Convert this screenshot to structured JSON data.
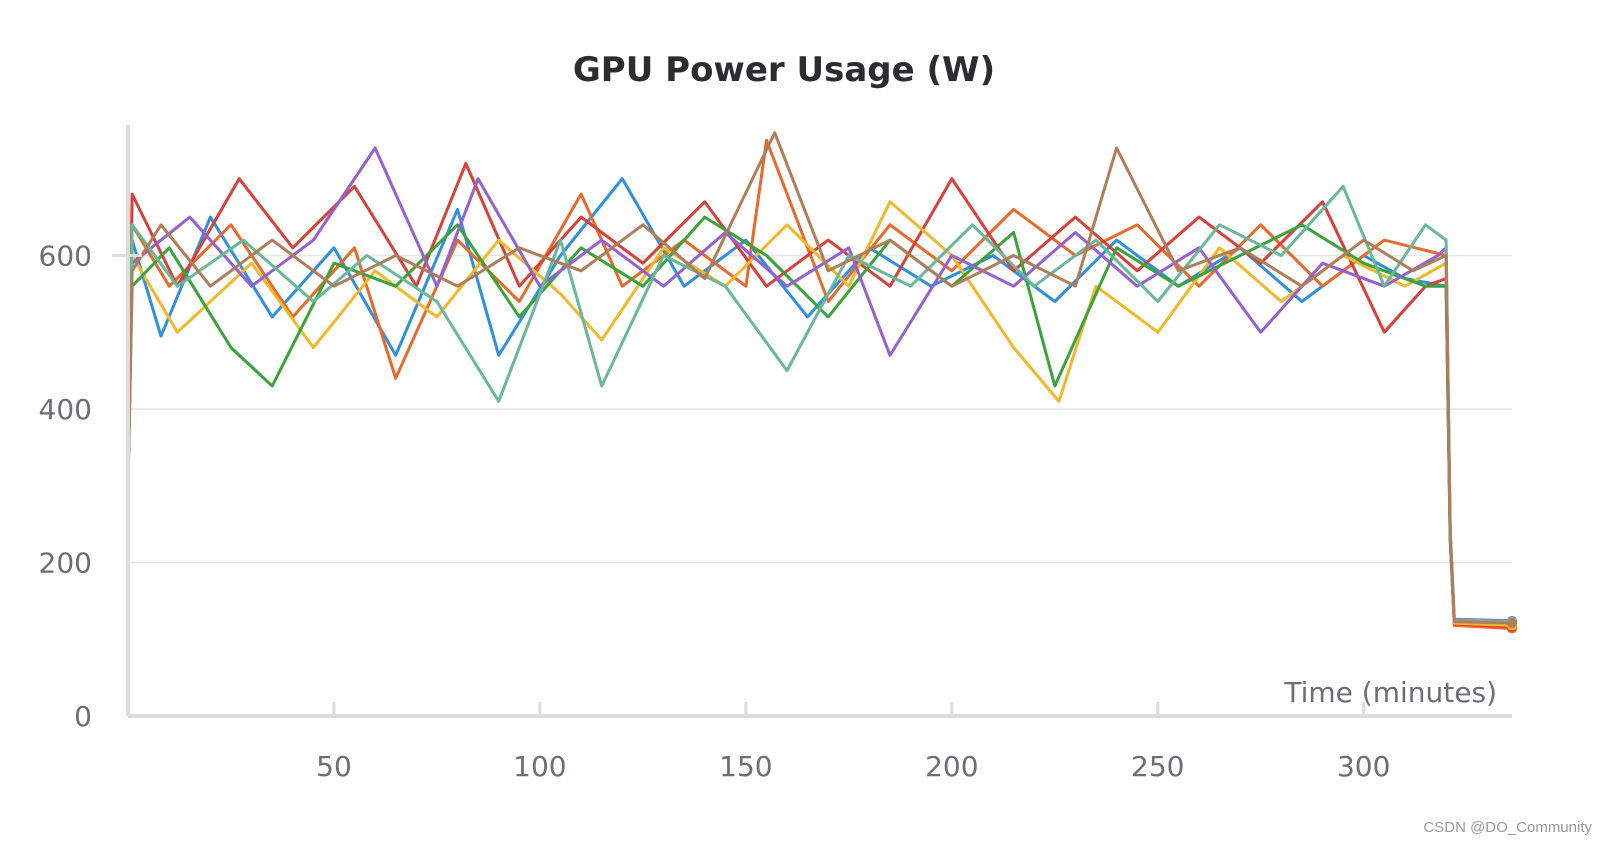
{
  "chart_data": {
    "type": "line",
    "title": "GPU Power Usage (W)",
    "xlabel": "Time (minutes)",
    "ylabel": "",
    "xlim": [
      0,
      336
    ],
    "ylim": [
      0,
      770
    ],
    "x_ticks": [
      50,
      100,
      150,
      200,
      250,
      300
    ],
    "y_ticks": [
      0,
      200,
      400,
      600
    ],
    "grid": true,
    "legend": "none",
    "series": [
      {
        "color": "#2f8fe0",
        "values": [
          [
            0,
            300
          ],
          [
            1,
            620
          ],
          [
            8,
            495
          ],
          [
            20,
            650
          ],
          [
            35,
            520
          ],
          [
            50,
            610
          ],
          [
            65,
            470
          ],
          [
            80,
            660
          ],
          [
            90,
            470
          ],
          [
            105,
            600
          ],
          [
            120,
            700
          ],
          [
            135,
            560
          ],
          [
            150,
            620
          ],
          [
            165,
            520
          ],
          [
            180,
            610
          ],
          [
            195,
            560
          ],
          [
            210,
            600
          ],
          [
            225,
            540
          ],
          [
            240,
            620
          ],
          [
            255,
            560
          ],
          [
            270,
            610
          ],
          [
            285,
            540
          ],
          [
            300,
            600
          ],
          [
            310,
            570
          ],
          [
            320,
            560
          ],
          [
            321,
            230
          ],
          [
            322,
            122
          ],
          [
            336,
            120
          ]
        ]
      },
      {
        "color": "#e8692a",
        "values": [
          [
            0,
            300
          ],
          [
            1,
            640
          ],
          [
            10,
            560
          ],
          [
            25,
            640
          ],
          [
            40,
            520
          ],
          [
            55,
            610
          ],
          [
            65,
            440
          ],
          [
            80,
            620
          ],
          [
            95,
            540
          ],
          [
            110,
            680
          ],
          [
            120,
            560
          ],
          [
            135,
            620
          ],
          [
            150,
            560
          ],
          [
            155,
            750
          ],
          [
            170,
            540
          ],
          [
            185,
            640
          ],
          [
            200,
            580
          ],
          [
            215,
            660
          ],
          [
            230,
            600
          ],
          [
            245,
            640
          ],
          [
            260,
            560
          ],
          [
            275,
            640
          ],
          [
            290,
            560
          ],
          [
            305,
            620
          ],
          [
            320,
            600
          ],
          [
            321,
            230
          ],
          [
            322,
            118
          ],
          [
            336,
            114
          ]
        ]
      },
      {
        "color": "#d8403a",
        "values": [
          [
            0,
            300
          ],
          [
            1,
            680
          ],
          [
            12,
            560
          ],
          [
            27,
            700
          ],
          [
            40,
            610
          ],
          [
            55,
            690
          ],
          [
            70,
            560
          ],
          [
            82,
            720
          ],
          [
            95,
            560
          ],
          [
            110,
            650
          ],
          [
            125,
            590
          ],
          [
            140,
            670
          ],
          [
            155,
            560
          ],
          [
            170,
            620
          ],
          [
            185,
            560
          ],
          [
            200,
            700
          ],
          [
            215,
            580
          ],
          [
            230,
            650
          ],
          [
            245,
            580
          ],
          [
            260,
            650
          ],
          [
            275,
            590
          ],
          [
            290,
            670
          ],
          [
            305,
            500
          ],
          [
            315,
            560
          ],
          [
            320,
            570
          ],
          [
            321,
            240
          ],
          [
            322,
            120
          ],
          [
            336,
            116
          ]
        ]
      },
      {
        "color": "#f2b82a",
        "values": [
          [
            0,
            300
          ],
          [
            1,
            600
          ],
          [
            12,
            500
          ],
          [
            30,
            590
          ],
          [
            45,
            480
          ],
          [
            60,
            580
          ],
          [
            75,
            520
          ],
          [
            90,
            620
          ],
          [
            105,
            550
          ],
          [
            115,
            490
          ],
          [
            130,
            610
          ],
          [
            145,
            560
          ],
          [
            160,
            640
          ],
          [
            175,
            560
          ],
          [
            185,
            670
          ],
          [
            200,
            600
          ],
          [
            215,
            480
          ],
          [
            226,
            410
          ],
          [
            235,
            560
          ],
          [
            250,
            500
          ],
          [
            265,
            610
          ],
          [
            280,
            540
          ],
          [
            295,
            600
          ],
          [
            310,
            560
          ],
          [
            320,
            590
          ],
          [
            321,
            235
          ],
          [
            322,
            121
          ],
          [
            336,
            118
          ]
        ]
      },
      {
        "color": "#3aa33a",
        "values": [
          [
            0,
            300
          ],
          [
            1,
            560
          ],
          [
            10,
            610
          ],
          [
            25,
            480
          ],
          [
            35,
            430
          ],
          [
            50,
            590
          ],
          [
            65,
            560
          ],
          [
            80,
            640
          ],
          [
            95,
            520
          ],
          [
            110,
            610
          ],
          [
            125,
            560
          ],
          [
            140,
            650
          ],
          [
            155,
            600
          ],
          [
            170,
            520
          ],
          [
            185,
            620
          ],
          [
            200,
            560
          ],
          [
            215,
            630
          ],
          [
            225,
            430
          ],
          [
            240,
            610
          ],
          [
            255,
            560
          ],
          [
            270,
            600
          ],
          [
            285,
            640
          ],
          [
            300,
            590
          ],
          [
            315,
            560
          ],
          [
            320,
            560
          ],
          [
            321,
            230
          ],
          [
            322,
            124
          ],
          [
            336,
            122
          ]
        ]
      },
      {
        "color": "#9560d0",
        "values": [
          [
            0,
            300
          ],
          [
            1,
            590
          ],
          [
            15,
            650
          ],
          [
            30,
            560
          ],
          [
            45,
            620
          ],
          [
            60,
            740
          ],
          [
            75,
            560
          ],
          [
            85,
            700
          ],
          [
            100,
            560
          ],
          [
            115,
            620
          ],
          [
            130,
            560
          ],
          [
            145,
            630
          ],
          [
            160,
            560
          ],
          [
            175,
            610
          ],
          [
            185,
            470
          ],
          [
            200,
            600
          ],
          [
            215,
            560
          ],
          [
            230,
            630
          ],
          [
            245,
            560
          ],
          [
            260,
            610
          ],
          [
            275,
            500
          ],
          [
            290,
            590
          ],
          [
            305,
            560
          ],
          [
            318,
            600
          ],
          [
            320,
            610
          ],
          [
            321,
            240
          ],
          [
            322,
            126
          ],
          [
            336,
            124
          ]
        ]
      },
      {
        "color": "#68b899",
        "values": [
          [
            0,
            300
          ],
          [
            1,
            640
          ],
          [
            12,
            560
          ],
          [
            28,
            620
          ],
          [
            45,
            540
          ],
          [
            58,
            600
          ],
          [
            75,
            540
          ],
          [
            90,
            410
          ],
          [
            105,
            620
          ],
          [
            115,
            430
          ],
          [
            130,
            600
          ],
          [
            145,
            560
          ],
          [
            160,
            450
          ],
          [
            175,
            600
          ],
          [
            190,
            560
          ],
          [
            205,
            640
          ],
          [
            220,
            560
          ],
          [
            235,
            620
          ],
          [
            250,
            540
          ],
          [
            265,
            640
          ],
          [
            280,
            600
          ],
          [
            295,
            690
          ],
          [
            305,
            560
          ],
          [
            315,
            640
          ],
          [
            320,
            620
          ],
          [
            321,
            245
          ],
          [
            322,
            125
          ],
          [
            336,
            123
          ]
        ]
      },
      {
        "color": "#b07d5a",
        "values": [
          [
            0,
            300
          ],
          [
            1,
            580
          ],
          [
            8,
            640
          ],
          [
            20,
            560
          ],
          [
            35,
            620
          ],
          [
            50,
            560
          ],
          [
            65,
            600
          ],
          [
            80,
            560
          ],
          [
            95,
            610
          ],
          [
            110,
            580
          ],
          [
            125,
            640
          ],
          [
            140,
            570
          ],
          [
            157,
            760
          ],
          [
            170,
            580
          ],
          [
            185,
            620
          ],
          [
            200,
            560
          ],
          [
            215,
            600
          ],
          [
            230,
            560
          ],
          [
            240,
            740
          ],
          [
            255,
            580
          ],
          [
            270,
            610
          ],
          [
            285,
            560
          ],
          [
            300,
            620
          ],
          [
            312,
            580
          ],
          [
            320,
            600
          ],
          [
            321,
            238
          ],
          [
            322,
            123
          ],
          [
            336,
            121
          ]
        ]
      }
    ]
  },
  "watermark": "CSDN @DO_Community"
}
